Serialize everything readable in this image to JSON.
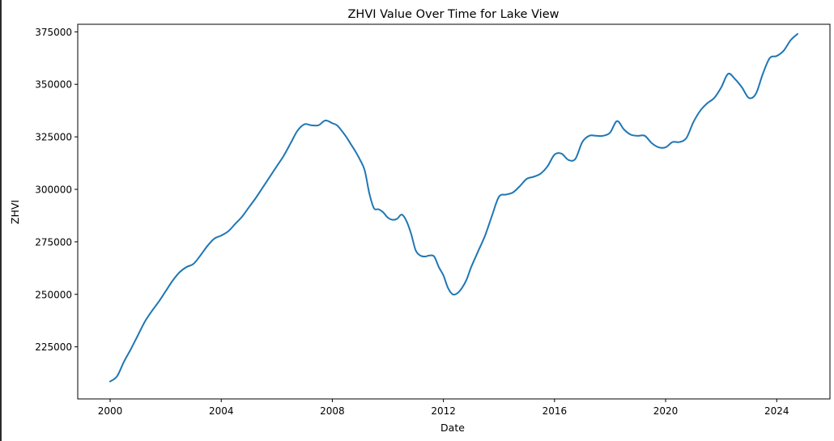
{
  "chart_data": {
    "type": "line",
    "title": "ZHVI Value Over Time for Lake View",
    "xlabel": "Date",
    "ylabel": "ZHVI",
    "x_ticks": [
      "2000",
      "2004",
      "2008",
      "2012",
      "2016",
      "2020",
      "2024"
    ],
    "y_ticks": [
      "225000",
      "250000",
      "275000",
      "300000",
      "325000",
      "350000",
      "375000"
    ],
    "xlim": [
      "1998-11",
      "2025-12"
    ],
    "ylim": [
      200200,
      378600
    ],
    "grid": false,
    "line_color": "#1f77b4",
    "series": [
      {
        "x": [
          "2000-01",
          "2000-04",
          "2000-07",
          "2000-10",
          "2001-01",
          "2001-04",
          "2001-07",
          "2001-10",
          "2002-01",
          "2002-04",
          "2002-07",
          "2002-10",
          "2003-01",
          "2003-04",
          "2003-07",
          "2003-10",
          "2004-01",
          "2004-04",
          "2004-07",
          "2004-10",
          "2005-01",
          "2005-04",
          "2005-07",
          "2005-10",
          "2006-01",
          "2006-04",
          "2006-07",
          "2006-10",
          "2007-01",
          "2007-04",
          "2007-07",
          "2007-10",
          "2008-01",
          "2008-03",
          "2008-05",
          "2008-07",
          "2008-09",
          "2008-11",
          "2009-01",
          "2009-03",
          "2009-05",
          "2009-07",
          "2009-09",
          "2009-11",
          "2010-01",
          "2010-03",
          "2010-05",
          "2010-07",
          "2010-09",
          "2010-11",
          "2011-01",
          "2011-03",
          "2011-05",
          "2011-07",
          "2011-09",
          "2011-11",
          "2012-01",
          "2012-03",
          "2012-05",
          "2012-07",
          "2012-09",
          "2012-11",
          "2013-01",
          "2013-04",
          "2013-07",
          "2013-10",
          "2014-01",
          "2014-04",
          "2014-07",
          "2014-10",
          "2015-01",
          "2015-04",
          "2015-07",
          "2015-10",
          "2016-01",
          "2016-04",
          "2016-07",
          "2016-10",
          "2017-01",
          "2017-04",
          "2017-07",
          "2017-10",
          "2018-01",
          "2018-04",
          "2018-07",
          "2018-10",
          "2019-01",
          "2019-04",
          "2019-07",
          "2019-10",
          "2020-01",
          "2020-04",
          "2020-07",
          "2020-10",
          "2021-01",
          "2021-04",
          "2021-07",
          "2021-10",
          "2022-01",
          "2022-04",
          "2022-07",
          "2022-10",
          "2023-01",
          "2023-04",
          "2023-07",
          "2023-10",
          "2024-01",
          "2024-04",
          "2024-07",
          "2024-10"
        ],
        "y": [
          208500,
          211000,
          218000,
          224000,
          230500,
          237000,
          242000,
          246500,
          251500,
          256500,
          260500,
          263000,
          264500,
          268500,
          273000,
          276500,
          278000,
          280000,
          283500,
          287000,
          291500,
          296000,
          301000,
          306000,
          311000,
          316000,
          322000,
          328000,
          331000,
          330500,
          330500,
          332800,
          331500,
          330500,
          328000,
          325000,
          321500,
          318000,
          314000,
          309000,
          298000,
          291000,
          290500,
          289000,
          286500,
          285500,
          286000,
          288000,
          285000,
          279000,
          271000,
          268500,
          268000,
          268500,
          268000,
          263000,
          259000,
          253000,
          250000,
          250500,
          253000,
          257000,
          263000,
          270500,
          278000,
          287500,
          296500,
          297500,
          298500,
          301500,
          305000,
          306000,
          307500,
          311000,
          316500,
          317000,
          314000,
          314500,
          322500,
          325500,
          325500,
          325500,
          327000,
          332500,
          328500,
          326000,
          325500,
          325500,
          322000,
          320000,
          320000,
          322500,
          322500,
          324500,
          332000,
          337500,
          341000,
          343500,
          348500,
          355000,
          352500,
          348500,
          343500,
          345500,
          355000,
          362500,
          363500,
          366000,
          371000,
          374000
        ]
      }
    ]
  }
}
